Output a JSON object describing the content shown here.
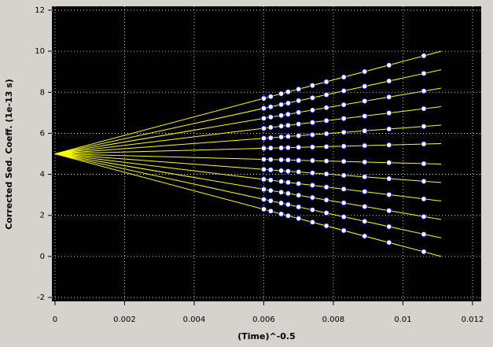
{
  "chart_data": {
    "type": "line",
    "xlabel": "(Time)^-0.5",
    "ylabel": "Corrected Sed. Coeff. (1e-13 s)",
    "xlim": [
      -9e-05,
      0.01225
    ],
    "ylim": [
      -2.19,
      12.19
    ],
    "xticks": [
      0,
      0.002,
      0.004,
      0.006,
      0.008,
      0.01,
      0.012
    ],
    "yticks": [
      -2,
      0,
      2,
      4,
      6,
      8,
      10,
      12
    ],
    "grid": true,
    "background": "#000000",
    "grid_color": "#ffffff",
    "line_color": "#ffff00",
    "point_color": "#ffffff",
    "point_edge": "#0000ff",
    "x": [
      0,
      0.0111
    ],
    "point_x": [
      0.006,
      0.0062,
      0.0065,
      0.0067,
      0.007,
      0.0074,
      0.0078,
      0.0083,
      0.0089,
      0.0096,
      0.0106
    ],
    "series": [
      {
        "values": [
          5,
          0
        ],
        "point_values": [
          2.3,
          2.21,
          2.07,
          1.98,
          1.85,
          1.67,
          1.49,
          1.26,
          0.99,
          0.68,
          0.23
        ]
      },
      {
        "values": [
          5,
          0.9
        ],
        "point_values": [
          2.78,
          2.71,
          2.6,
          2.53,
          2.41,
          2.27,
          2.12,
          1.93,
          1.71,
          1.45,
          1.08
        ]
      },
      {
        "values": [
          5,
          1.8
        ],
        "point_values": [
          3.27,
          3.21,
          3.13,
          3.07,
          2.98,
          2.87,
          2.75,
          2.61,
          2.43,
          2.23,
          1.94
        ]
      },
      {
        "values": [
          5,
          2.7
        ],
        "point_values": [
          3.76,
          3.72,
          3.65,
          3.61,
          3.55,
          3.47,
          3.38,
          3.28,
          3.16,
          3.01,
          2.8
        ]
      },
      {
        "values": [
          5,
          3.6
        ],
        "point_values": [
          4.24,
          4.22,
          4.18,
          4.15,
          4.12,
          4.07,
          4.02,
          3.95,
          3.88,
          3.79,
          3.66
        ]
      },
      {
        "values": [
          5,
          4.5
        ],
        "point_values": [
          4.73,
          4.72,
          4.71,
          4.7,
          4.68,
          4.67,
          4.65,
          4.63,
          4.6,
          4.57,
          4.52
        ]
      },
      {
        "values": [
          5,
          5.5
        ],
        "point_values": [
          5.27,
          5.28,
          5.29,
          5.3,
          5.32,
          5.33,
          5.35,
          5.37,
          5.4,
          5.43,
          5.48
        ]
      },
      {
        "values": [
          5,
          6.4
        ],
        "point_values": [
          5.76,
          5.78,
          5.82,
          5.85,
          5.88,
          5.93,
          5.98,
          6.05,
          6.12,
          6.21,
          6.34
        ]
      },
      {
        "values": [
          5,
          7.3
        ],
        "point_values": [
          6.24,
          6.29,
          6.35,
          6.39,
          6.45,
          6.53,
          6.62,
          6.72,
          6.84,
          6.99,
          7.2
        ]
      },
      {
        "values": [
          5,
          8.2
        ],
        "point_values": [
          6.73,
          6.79,
          6.87,
          6.93,
          7.02,
          7.13,
          7.25,
          7.39,
          7.57,
          7.77,
          8.06
        ]
      },
      {
        "values": [
          5,
          9.1
        ],
        "point_values": [
          7.22,
          7.29,
          7.4,
          7.47,
          7.59,
          7.73,
          7.88,
          8.07,
          8.29,
          8.55,
          8.92
        ]
      },
      {
        "values": [
          5,
          10.0
        ],
        "point_values": [
          7.7,
          7.79,
          7.93,
          8.02,
          8.15,
          8.33,
          8.51,
          8.74,
          9.01,
          9.32,
          9.78
        ]
      }
    ]
  }
}
